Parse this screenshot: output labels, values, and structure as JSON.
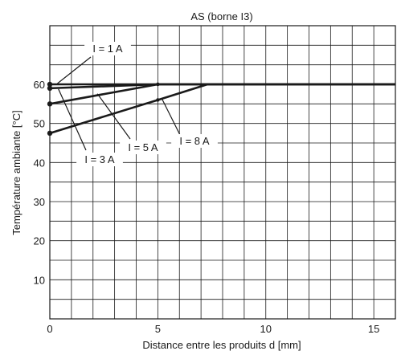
{
  "chart_data": {
    "type": "line",
    "title": "AS (borne I3)",
    "xlabel": "Distance entre les produits d [mm]",
    "ylabel": "Température ambiante [°C]",
    "xlim": [
      0,
      16
    ],
    "ylim": [
      0,
      75
    ],
    "xticks": [
      0,
      5,
      10,
      15
    ],
    "yticks": [
      10,
      20,
      30,
      40,
      50,
      60
    ],
    "grid": true,
    "series": [
      {
        "name": "I = 1 A",
        "x": [
          0,
          16
        ],
        "y": [
          60,
          60
        ]
      },
      {
        "name": "I = 3 A",
        "x": [
          0,
          5,
          16
        ],
        "y": [
          59,
          60,
          60
        ]
      },
      {
        "name": "I = 5 A",
        "x": [
          0,
          5,
          16
        ],
        "y": [
          55,
          60,
          60
        ]
      },
      {
        "name": "I = 8 A",
        "x": [
          0,
          5,
          7.3,
          16
        ],
        "y": [
          47.5,
          56,
          60,
          60
        ]
      }
    ]
  }
}
